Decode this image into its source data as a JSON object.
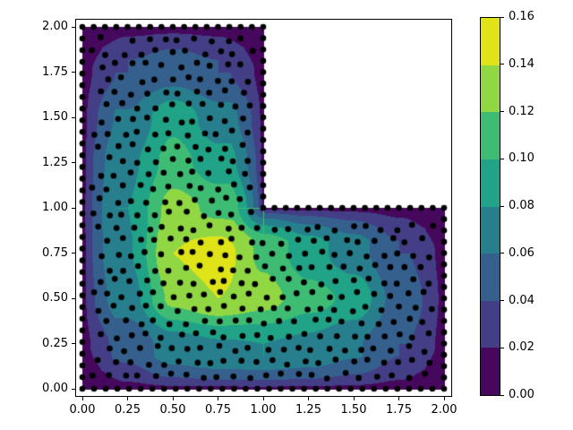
{
  "figure": {
    "background": "#ffffff"
  },
  "axes": {
    "x_tick_labels": [
      "0.00",
      "0.25",
      "0.50",
      "0.75",
      "1.00",
      "1.25",
      "1.50",
      "1.75",
      "2.00"
    ],
    "x_tick_values": [
      0,
      0.25,
      0.5,
      0.75,
      1.0,
      1.25,
      1.5,
      1.75,
      2.0
    ],
    "y_tick_labels": [
      "0.00",
      "0.25",
      "0.50",
      "0.75",
      "1.00",
      "1.25",
      "1.50",
      "1.75",
      "2.00"
    ],
    "y_tick_values": [
      0,
      0.25,
      0.5,
      0.75,
      1.0,
      1.25,
      1.5,
      1.75,
      2.0
    ],
    "xlim": [
      -0.045,
      2.045
    ],
    "ylim": [
      -0.045,
      2.045
    ]
  },
  "colorbar": {
    "tick_labels": [
      "0.00",
      "0.02",
      "0.04",
      "0.06",
      "0.08",
      "0.10",
      "0.12",
      "0.14",
      "0.16"
    ],
    "tick_values": [
      0,
      0.02,
      0.04,
      0.06,
      0.08,
      0.1,
      0.12,
      0.14,
      0.16
    ],
    "min": 0.0,
    "max": 0.16
  },
  "chart_data": {
    "type": "filled_contour_with_scatter",
    "title": "",
    "xlabel": "",
    "ylabel": "",
    "domain": "L-shape: [0,2]x[0,2] minus (1,2]x(1,2]",
    "levels": [
      0,
      0.02,
      0.04,
      0.06,
      0.08,
      0.1,
      0.12,
      0.14,
      0.16
    ],
    "band_colors": [
      "#46085c",
      "#433e85",
      "#355f8d",
      "#277f8e",
      "#20a386",
      "#3fbc73",
      "#90d743",
      "#dfe318"
    ],
    "field_grid": {
      "comment": "u(x,y) sampled on 0.25 grid; 0 on boundary; null outside L-domain; peak ~0.15 near (0.7,0.7)",
      "x": [
        0,
        0.25,
        0.5,
        0.75,
        1.0,
        1.25,
        1.5,
        1.75,
        2.0
      ],
      "y": [
        0,
        0.25,
        0.5,
        0.75,
        1.0,
        1.25,
        1.5,
        1.75,
        2.0
      ],
      "values": [
        [
          0,
          0,
          0,
          0,
          0,
          0,
          0,
          0,
          0
        ],
        [
          0,
          0.045,
          0.07,
          0.078,
          0.08,
          0.075,
          0.062,
          0.04,
          0
        ],
        [
          0,
          0.07,
          0.125,
          0.14,
          0.128,
          0.108,
          0.095,
          0.05,
          0
        ],
        [
          0,
          0.078,
          0.14,
          0.152,
          0.115,
          0.088,
          0.068,
          0.04,
          0
        ],
        [
          0,
          0.08,
          0.128,
          0.115,
          0,
          0,
          0,
          0,
          0
        ],
        [
          0,
          0.075,
          0.108,
          0.088,
          0,
          null,
          null,
          null,
          null
        ],
        [
          0,
          0.062,
          0.095,
          0.068,
          0,
          null,
          null,
          null,
          null
        ],
        [
          0,
          0.04,
          0.05,
          0.04,
          0,
          null,
          null,
          null,
          null
        ],
        [
          0,
          0,
          0,
          0,
          0,
          null,
          null,
          null,
          null
        ]
      ]
    },
    "scatter": {
      "marker_color": "#000000",
      "marker_radius_px": 3.3,
      "boundary_path": [
        [
          0,
          0
        ],
        [
          2,
          0
        ],
        [
          2,
          1
        ],
        [
          1,
          1
        ],
        [
          1,
          2
        ],
        [
          0,
          2
        ]
      ],
      "boundary_counts": [
        31,
        16,
        16,
        16,
        16,
        31
      ],
      "interior": {
        "row_spacing": 0.0745,
        "col_spacing": 0.087,
        "jitter": 0.034,
        "boundary_margin": 0.052,
        "seed": 11
      }
    }
  }
}
